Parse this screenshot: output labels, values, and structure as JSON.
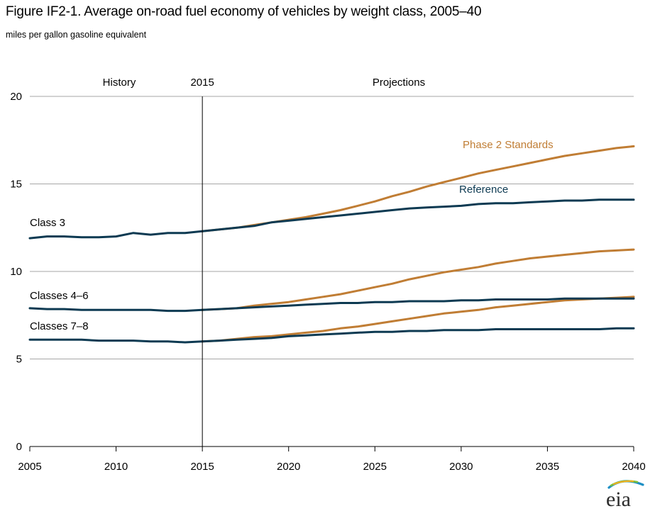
{
  "title": "Figure IF2-1. Average on-road fuel economy of vehicles by weight class, 2005–40",
  "subtitle": "miles per gallon gasoline equivalent",
  "logo_text": "eia",
  "chart_data": {
    "type": "line",
    "xlim": [
      2005,
      2040
    ],
    "ylim": [
      0,
      20
    ],
    "x_ticks": [
      "2005",
      "2010",
      "2015",
      "2020",
      "2025",
      "2030",
      "2035",
      "2040"
    ],
    "x_tick_values": [
      2005,
      2010,
      2015,
      2020,
      2025,
      2030,
      2035,
      2040
    ],
    "y_ticks": [
      "0",
      "5",
      "10",
      "15",
      "20"
    ],
    "y_tick_values": [
      0,
      5,
      10,
      15,
      20
    ],
    "grid": "horizontal",
    "divider": {
      "x": 2015,
      "label": "2015"
    },
    "region_labels": {
      "history": "History",
      "projections": "Projections"
    },
    "annotations": {
      "class3": "Class 3",
      "classes46": "Classes 4–6",
      "classes78": "Classes 7–8",
      "phase2": "Phase 2 Standards",
      "reference": "Reference"
    },
    "colors": {
      "reference": "#0d3a52",
      "phase2": "#c07d34",
      "grid": "#a6a6a6",
      "axis": "#000000"
    },
    "x": [
      2005,
      2006,
      2007,
      2008,
      2009,
      2010,
      2011,
      2012,
      2013,
      2014,
      2015,
      2016,
      2017,
      2018,
      2019,
      2020,
      2021,
      2022,
      2023,
      2024,
      2025,
      2026,
      2027,
      2028,
      2029,
      2030,
      2031,
      2032,
      2033,
      2034,
      2035,
      2036,
      2037,
      2038,
      2039,
      2040
    ],
    "series": [
      {
        "group": "Class 3",
        "scenario": "Reference",
        "values": [
          11.9,
          12.0,
          12.0,
          11.95,
          11.95,
          12.0,
          12.2,
          12.1,
          12.2,
          12.2,
          12.3,
          12.4,
          12.5,
          12.6,
          12.8,
          12.9,
          13.0,
          13.1,
          13.2,
          13.3,
          13.4,
          13.5,
          13.6,
          13.65,
          13.7,
          13.75,
          13.85,
          13.9,
          13.9,
          13.95,
          14.0,
          14.05,
          14.05,
          14.1,
          14.1,
          14.1
        ]
      },
      {
        "group": "Class 3",
        "scenario": "Phase 2 Standards",
        "values": [
          null,
          null,
          null,
          null,
          null,
          null,
          null,
          null,
          null,
          null,
          12.3,
          12.4,
          12.5,
          12.65,
          12.8,
          12.95,
          13.1,
          13.3,
          13.5,
          13.75,
          14.0,
          14.3,
          14.55,
          14.85,
          15.1,
          15.35,
          15.6,
          15.8,
          16.0,
          16.2,
          16.4,
          16.6,
          16.75,
          16.9,
          17.05,
          17.15
        ]
      },
      {
        "group": "Classes 4–6",
        "scenario": "Reference",
        "values": [
          7.9,
          7.85,
          7.85,
          7.8,
          7.8,
          7.8,
          7.8,
          7.8,
          7.75,
          7.75,
          7.8,
          7.85,
          7.9,
          7.95,
          8.0,
          8.05,
          8.1,
          8.15,
          8.2,
          8.2,
          8.25,
          8.25,
          8.3,
          8.3,
          8.3,
          8.35,
          8.35,
          8.4,
          8.4,
          8.4,
          8.4,
          8.45,
          8.45,
          8.45,
          8.45,
          8.45
        ]
      },
      {
        "group": "Classes 4–6",
        "scenario": "Phase 2 Standards",
        "values": [
          null,
          null,
          null,
          null,
          null,
          null,
          null,
          null,
          null,
          null,
          7.8,
          7.85,
          7.9,
          8.05,
          8.15,
          8.25,
          8.4,
          8.55,
          8.7,
          8.9,
          9.1,
          9.3,
          9.55,
          9.75,
          9.95,
          10.1,
          10.25,
          10.45,
          10.6,
          10.75,
          10.85,
          10.95,
          11.05,
          11.15,
          11.2,
          11.25
        ]
      },
      {
        "group": "Classes 7–8",
        "scenario": "Reference",
        "values": [
          6.1,
          6.1,
          6.1,
          6.1,
          6.05,
          6.05,
          6.05,
          6.0,
          6.0,
          5.95,
          6.0,
          6.05,
          6.1,
          6.15,
          6.2,
          6.3,
          6.35,
          6.4,
          6.45,
          6.5,
          6.55,
          6.55,
          6.6,
          6.6,
          6.65,
          6.65,
          6.65,
          6.7,
          6.7,
          6.7,
          6.7,
          6.7,
          6.7,
          6.7,
          6.75,
          6.75
        ]
      },
      {
        "group": "Classes 7–8",
        "scenario": "Phase 2 Standards",
        "values": [
          null,
          null,
          null,
          null,
          null,
          null,
          null,
          null,
          null,
          null,
          6.0,
          6.05,
          6.15,
          6.25,
          6.3,
          6.4,
          6.5,
          6.6,
          6.75,
          6.85,
          7.0,
          7.15,
          7.3,
          7.45,
          7.6,
          7.7,
          7.8,
          7.95,
          8.05,
          8.15,
          8.25,
          8.35,
          8.4,
          8.45,
          8.5,
          8.55
        ]
      }
    ]
  }
}
